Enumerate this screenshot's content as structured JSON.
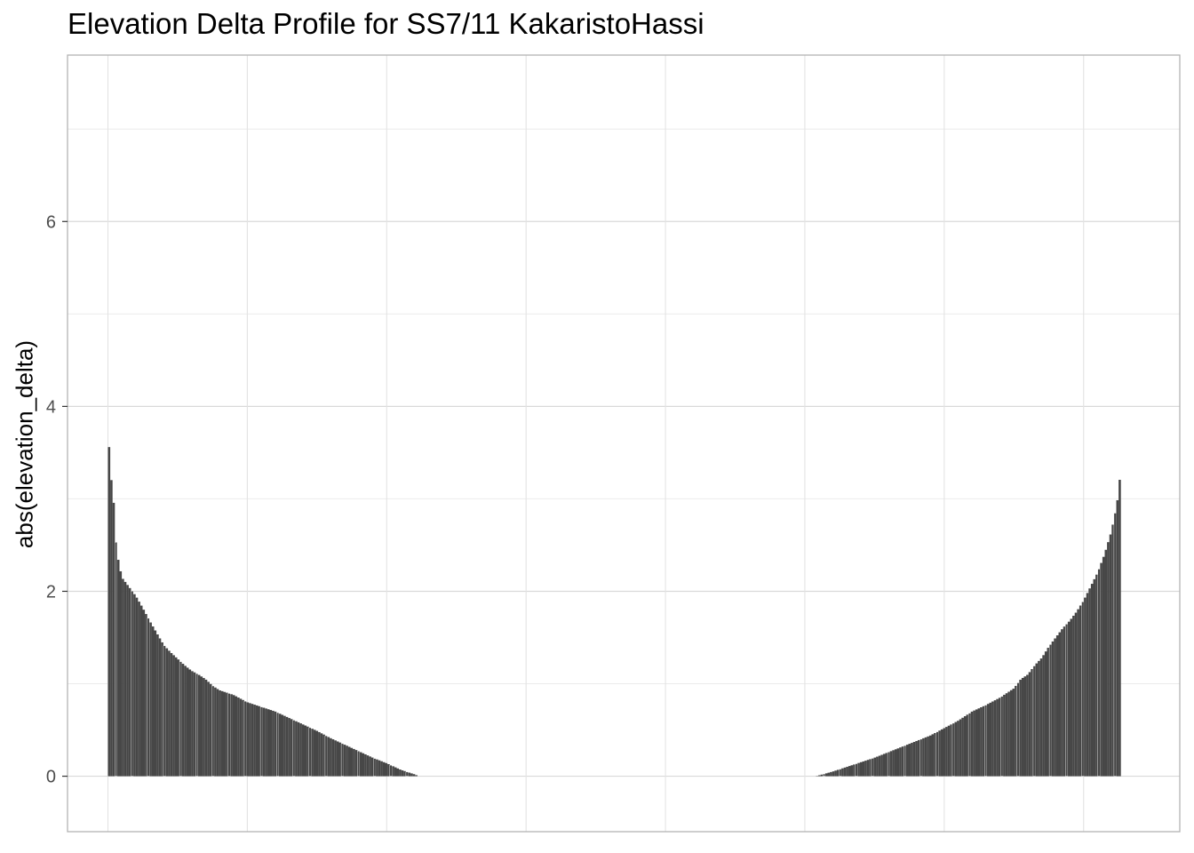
{
  "chart_data": {
    "type": "bar",
    "title": "Elevation Delta Profile for SS7/11 KakaristoHassi",
    "xlabel": "",
    "ylabel": "abs(elevation_delta)",
    "ylim": [
      -0.6,
      7.8
    ],
    "yticks": [
      0,
      2,
      4,
      6
    ],
    "ytick_labels": [
      "0",
      "2",
      "4",
      "6"
    ],
    "xlim": [
      -0.29,
      7.69
    ],
    "x_gridlines": [
      0,
      1,
      2,
      3,
      4,
      5,
      6,
      7
    ],
    "grid": true,
    "bar_color": "#474747",
    "bar_edge_color": "#ffffff",
    "left_group": {
      "x_start": 0.0,
      "x_end": 2.23,
      "profile": [
        [
          0.0,
          3.85
        ],
        [
          0.01,
          3.5
        ],
        [
          0.03,
          3.1
        ],
        [
          0.05,
          2.85
        ],
        [
          0.06,
          2.45
        ],
        [
          0.08,
          2.3
        ],
        [
          0.1,
          2.15
        ],
        [
          0.15,
          2.05
        ],
        [
          0.2,
          1.95
        ],
        [
          0.25,
          1.82
        ],
        [
          0.3,
          1.68
        ],
        [
          0.35,
          1.55
        ],
        [
          0.4,
          1.42
        ],
        [
          0.45,
          1.34
        ],
        [
          0.5,
          1.27
        ],
        [
          0.55,
          1.2
        ],
        [
          0.6,
          1.14
        ],
        [
          0.65,
          1.1
        ],
        [
          0.7,
          1.05
        ],
        [
          0.75,
          0.98
        ],
        [
          0.8,
          0.93
        ],
        [
          0.9,
          0.88
        ],
        [
          1.0,
          0.8
        ],
        [
          1.1,
          0.75
        ],
        [
          1.2,
          0.7
        ],
        [
          1.3,
          0.63
        ],
        [
          1.4,
          0.56
        ],
        [
          1.5,
          0.49
        ],
        [
          1.6,
          0.41
        ],
        [
          1.7,
          0.34
        ],
        [
          1.8,
          0.27
        ],
        [
          1.9,
          0.2
        ],
        [
          2.0,
          0.14
        ],
        [
          2.1,
          0.07
        ],
        [
          2.2,
          0.02
        ],
        [
          2.23,
          0.0
        ]
      ]
    },
    "right_group": {
      "x_start": 5.08,
      "x_end": 7.27,
      "profile": [
        [
          5.08,
          0.0
        ],
        [
          5.2,
          0.05
        ],
        [
          5.3,
          0.1
        ],
        [
          5.4,
          0.15
        ],
        [
          5.5,
          0.2
        ],
        [
          5.6,
          0.26
        ],
        [
          5.7,
          0.32
        ],
        [
          5.8,
          0.38
        ],
        [
          5.9,
          0.44
        ],
        [
          6.0,
          0.52
        ],
        [
          6.1,
          0.6
        ],
        [
          6.2,
          0.7
        ],
        [
          6.3,
          0.77
        ],
        [
          6.4,
          0.85
        ],
        [
          6.5,
          0.95
        ],
        [
          6.55,
          1.05
        ],
        [
          6.6,
          1.1
        ],
        [
          6.65,
          1.2
        ],
        [
          6.7,
          1.28
        ],
        [
          6.75,
          1.4
        ],
        [
          6.8,
          1.5
        ],
        [
          6.85,
          1.6
        ],
        [
          6.9,
          1.68
        ],
        [
          6.95,
          1.78
        ],
        [
          7.0,
          1.9
        ],
        [
          7.05,
          2.05
        ],
        [
          7.1,
          2.2
        ],
        [
          7.15,
          2.4
        ],
        [
          7.2,
          2.65
        ],
        [
          7.24,
          2.95
        ],
        [
          7.27,
          3.35
        ]
      ]
    }
  }
}
